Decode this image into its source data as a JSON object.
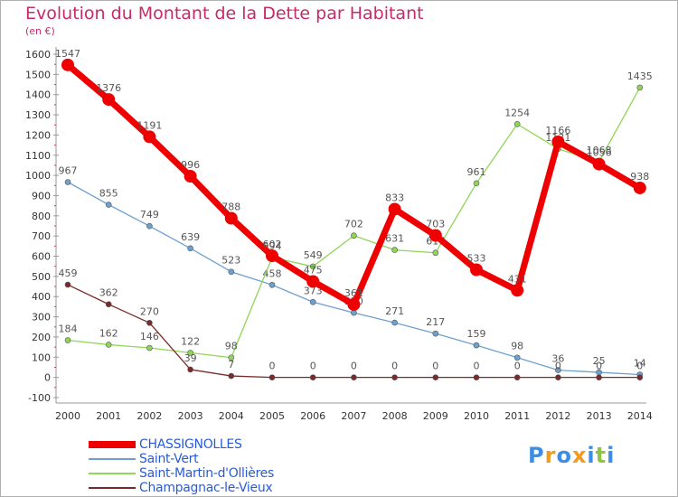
{
  "header": {
    "title": "Evolution du Montant de la Dette par Habitant",
    "subtitle": "(en €)"
  },
  "chart_data": {
    "type": "line",
    "title": "Evolution du Montant de la Dette par Habitant",
    "ylabel": "(en €)",
    "xlabel": "",
    "ylim": [
      -100,
      1600
    ],
    "yticks": [
      -100,
      0,
      100,
      200,
      300,
      400,
      500,
      600,
      700,
      800,
      900,
      1000,
      1100,
      1200,
      1300,
      1400,
      1500,
      1600
    ],
    "x": [
      "2000",
      "2001",
      "2002",
      "2003",
      "2004",
      "2005",
      "2006",
      "2007",
      "2008",
      "2009",
      "2010",
      "2011",
      "2012",
      "2013",
      "2014"
    ],
    "grid": false,
    "legend_position": "bottom-left",
    "series": [
      {
        "name": "Saint-Vert",
        "color": "#6ea0d0",
        "values": [
          967,
          855,
          749,
          639,
          523,
          458,
          373,
          320,
          271,
          217,
          159,
          98,
          36,
          25,
          14
        ]
      },
      {
        "name": "Saint-Martin-d'Ollières",
        "color": "#8fd656",
        "values": [
          184,
          162,
          146,
          122,
          98,
          594,
          549,
          702,
          631,
          617,
          961,
          1254,
          1131,
          1068,
          1435
        ]
      },
      {
        "name": "Champagnac-le-Vieux",
        "color": "#7a2a2a",
        "values": [
          459,
          362,
          270,
          39,
          7,
          0,
          0,
          0,
          0,
          0,
          0,
          0,
          0,
          0,
          0
        ]
      },
      {
        "name": "CHASSIGNOLLES",
        "color": "#ee0000",
        "values": [
          1547,
          1376,
          1191,
          996,
          788,
          602,
          475,
          361,
          833,
          703,
          533,
          431,
          1166,
          1056,
          938
        ]
      }
    ]
  },
  "legend": {
    "items": [
      {
        "label": "CHASSIGNOLLES",
        "color": "#ee0000"
      },
      {
        "label": "Saint-Vert",
        "color": "#6ea0d0"
      },
      {
        "label": "Saint-Martin-d'Ollières",
        "color": "#8fd656"
      },
      {
        "label": "Champagnac-le-Vieux",
        "color": "#7a2a2a"
      }
    ]
  },
  "logo": {
    "letters": [
      "P",
      "r",
      "o",
      "x",
      "i",
      "t",
      "i"
    ],
    "colors": [
      "#3a8ee6",
      "#f39a1e",
      "#3a8ee6",
      "#f39a1e",
      "#3a8ee6",
      "#8cc63f",
      "#3a8ee6"
    ]
  }
}
